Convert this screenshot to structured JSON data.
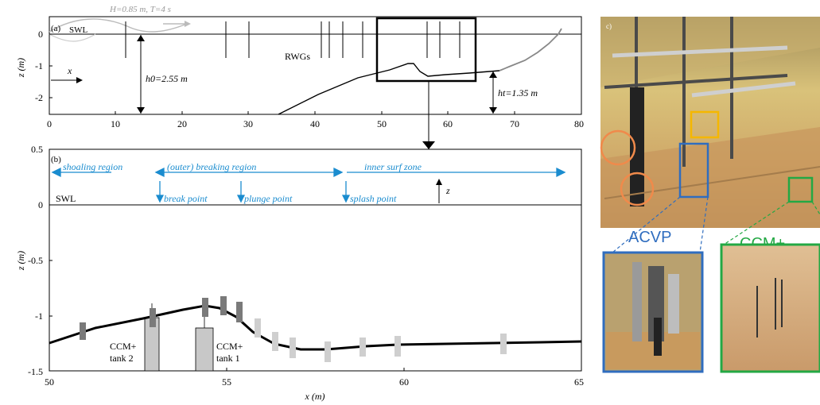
{
  "panel_a": {
    "label": "(a)",
    "wave_label": "H=0.85 m, T=4 s",
    "swl": "SWL",
    "x_arrow": "x",
    "h0": "h0=2.55 m",
    "ht": "ht=1.35 m",
    "rwgs": "RWGs",
    "ylabel": "z (m)",
    "xticks": [
      "0",
      "10",
      "20",
      "30",
      "40",
      "50",
      "60",
      "70",
      "80"
    ],
    "yticks": [
      "0",
      "-1",
      "-2"
    ],
    "colors": {
      "wave": "#bbbbbb",
      "profile": "#000000",
      "beach_upper": "#888888"
    }
  },
  "panel_b": {
    "label": "(b)",
    "regions": {
      "shoaling": "shoaling region",
      "breaking": "(outer) breaking region",
      "inner": "inner surf zone"
    },
    "points": {
      "break": "break point",
      "plunge": "plunge point",
      "splash": "splash point"
    },
    "swl": "SWL",
    "z_arrow": "z",
    "ccm_tank2": [
      "CCM+",
      "tank 2"
    ],
    "ccm_tank1": [
      "CCM+",
      "tank 1"
    ],
    "xlabel": "x (m)",
    "ylabel": "z (m)",
    "xticks": [
      "50",
      "55",
      "60",
      "65"
    ],
    "yticks": [
      "0.5",
      "0",
      "-0.5",
      "-1",
      "-1.5"
    ],
    "colors": {
      "annotation": "#1a8ccf",
      "dark_marker": "#7a7a7a",
      "light_marker": "#cfcfcf"
    }
  },
  "panel_c": {
    "label": "c)",
    "acvp": "ACVP",
    "ccm": "CCM+",
    "colors": {
      "acvp": "#2f6dbf",
      "ccm": "#23a844",
      "orange": "#f08a4b",
      "yellow": "#f5b700"
    }
  }
}
